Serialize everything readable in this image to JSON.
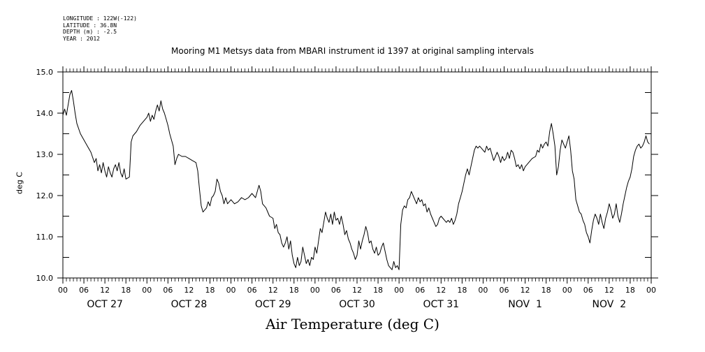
{
  "meta": {
    "longitude": "LONGITUDE : 122W(-122)",
    "latitude": "LATITUDE : 36.8N",
    "depth": "DEPTH (m) : -2.5",
    "year": "YEAR : 2012"
  },
  "chart_data": {
    "type": "line",
    "title": "Mooring M1 Metsys data from MBARI instrument id 1397 at original sampling intervals",
    "xlabel": "Air Temperature (deg C)",
    "ylabel": "deg C",
    "ylim": [
      10.0,
      15.0
    ],
    "xlim_hours": [
      0,
      168
    ],
    "yticks": [
      "10.0",
      "11.0",
      "12.0",
      "13.0",
      "14.0",
      "15.0"
    ],
    "hour_ticks": [
      "00",
      "06",
      "12",
      "18",
      "00",
      "06",
      "12",
      "18",
      "00",
      "06",
      "12",
      "18",
      "00",
      "06",
      "12",
      "18",
      "00",
      "06",
      "12",
      "18",
      "00",
      "06",
      "12",
      "18",
      "00",
      "06",
      "12",
      "18",
      "00"
    ],
    "day_labels": [
      "OCT 27",
      "OCT 28",
      "OCT 29",
      "OCT 30",
      "OCT 31",
      "NOV  1",
      "NOV  2"
    ],
    "grid": false,
    "series": [
      {
        "values": [
          [
            0,
            13.95
          ],
          [
            0.5,
            14.1
          ],
          [
            1,
            13.95
          ],
          [
            1.5,
            14.2
          ],
          [
            2,
            14.45
          ],
          [
            2.5,
            14.55
          ],
          [
            3,
            14.3
          ],
          [
            3.5,
            14.0
          ],
          [
            4,
            13.75
          ],
          [
            5,
            13.5
          ],
          [
            6,
            13.35
          ],
          [
            7,
            13.2
          ],
          [
            8,
            13.05
          ],
          [
            9,
            12.8
          ],
          [
            9.5,
            12.9
          ],
          [
            10,
            12.6
          ],
          [
            10.5,
            12.75
          ],
          [
            11,
            12.55
          ],
          [
            11.5,
            12.8
          ],
          [
            12,
            12.6
          ],
          [
            12.5,
            12.45
          ],
          [
            13,
            12.7
          ],
          [
            13.5,
            12.55
          ],
          [
            14,
            12.45
          ],
          [
            14.5,
            12.65
          ],
          [
            15,
            12.75
          ],
          [
            15.5,
            12.6
          ],
          [
            16,
            12.8
          ],
          [
            16.5,
            12.55
          ],
          [
            17,
            12.45
          ],
          [
            17.5,
            12.65
          ],
          [
            18,
            12.4
          ],
          [
            19,
            12.45
          ],
          [
            19.5,
            13.3
          ],
          [
            20,
            13.45
          ],
          [
            21,
            13.55
          ],
          [
            22,
            13.7
          ],
          [
            23,
            13.8
          ],
          [
            24,
            13.9
          ],
          [
            24.5,
            14.0
          ],
          [
            25,
            13.8
          ],
          [
            25.5,
            13.95
          ],
          [
            26,
            13.85
          ],
          [
            26.5,
            14.05
          ],
          [
            27,
            14.2
          ],
          [
            27.5,
            14.05
          ],
          [
            28,
            14.3
          ],
          [
            28.5,
            14.1
          ],
          [
            29,
            14.0
          ],
          [
            29.5,
            13.85
          ],
          [
            30,
            13.7
          ],
          [
            30.5,
            13.5
          ],
          [
            31,
            13.35
          ],
          [
            31.5,
            13.2
          ],
          [
            32,
            12.75
          ],
          [
            32.5,
            12.9
          ],
          [
            33,
            13.0
          ],
          [
            34,
            12.95
          ],
          [
            35,
            12.95
          ],
          [
            36,
            12.9
          ],
          [
            37,
            12.85
          ],
          [
            38,
            12.8
          ],
          [
            38.5,
            12.6
          ],
          [
            39,
            12.15
          ],
          [
            39.5,
            11.75
          ],
          [
            40,
            11.6
          ],
          [
            41,
            11.7
          ],
          [
            41.5,
            11.85
          ],
          [
            42,
            11.75
          ],
          [
            42.5,
            11.95
          ],
          [
            43,
            12.0
          ],
          [
            43.5,
            12.1
          ],
          [
            44,
            12.4
          ],
          [
            44.5,
            12.3
          ],
          [
            45,
            12.1
          ],
          [
            45.5,
            12.0
          ],
          [
            46,
            11.8
          ],
          [
            46.5,
            11.95
          ],
          [
            47,
            11.8
          ],
          [
            48,
            11.9
          ],
          [
            49,
            11.8
          ],
          [
            50,
            11.85
          ],
          [
            51,
            11.95
          ],
          [
            52,
            11.9
          ],
          [
            53,
            11.95
          ],
          [
            54,
            12.05
          ],
          [
            55,
            11.95
          ],
          [
            56,
            12.25
          ],
          [
            56.5,
            12.1
          ],
          [
            57,
            11.8
          ],
          [
            58,
            11.7
          ],
          [
            59,
            11.5
          ],
          [
            60,
            11.45
          ],
          [
            60.5,
            11.2
          ],
          [
            61,
            11.3
          ],
          [
            61.5,
            11.1
          ],
          [
            62,
            11.05
          ],
          [
            62.5,
            10.85
          ],
          [
            63,
            10.75
          ],
          [
            63.5,
            10.85
          ],
          [
            64,
            11.0
          ],
          [
            64.5,
            10.7
          ],
          [
            65,
            10.9
          ],
          [
            65.5,
            10.55
          ],
          [
            66,
            10.35
          ],
          [
            66.5,
            10.25
          ],
          [
            67,
            10.5
          ],
          [
            67.5,
            10.3
          ],
          [
            68,
            10.4
          ],
          [
            68.5,
            10.75
          ],
          [
            69,
            10.55
          ],
          [
            69.5,
            10.35
          ],
          [
            70,
            10.45
          ],
          [
            70.5,
            10.3
          ],
          [
            71,
            10.5
          ],
          [
            71.5,
            10.45
          ],
          [
            72,
            10.75
          ],
          [
            72.5,
            10.6
          ],
          [
            73,
            10.9
          ],
          [
            73.5,
            11.2
          ],
          [
            74,
            11.1
          ],
          [
            74.5,
            11.35
          ],
          [
            75,
            11.6
          ],
          [
            75.5,
            11.45
          ],
          [
            76,
            11.35
          ],
          [
            76.5,
            11.55
          ],
          [
            77,
            11.3
          ],
          [
            77.5,
            11.6
          ],
          [
            78,
            11.4
          ],
          [
            78.5,
            11.45
          ],
          [
            79,
            11.3
          ],
          [
            79.5,
            11.5
          ],
          [
            80,
            11.3
          ],
          [
            80.5,
            11.05
          ],
          [
            81,
            11.15
          ],
          [
            81.5,
            10.95
          ],
          [
            82,
            10.85
          ],
          [
            82.5,
            10.7
          ],
          [
            83,
            10.6
          ],
          [
            83.5,
            10.45
          ],
          [
            84,
            10.55
          ],
          [
            84.5,
            10.9
          ],
          [
            85,
            10.7
          ],
          [
            85.5,
            10.9
          ],
          [
            86,
            11.05
          ],
          [
            86.5,
            11.25
          ],
          [
            87,
            11.1
          ],
          [
            87.5,
            10.85
          ],
          [
            88,
            10.9
          ],
          [
            88.5,
            10.7
          ],
          [
            89,
            10.6
          ],
          [
            89.5,
            10.75
          ],
          [
            90,
            10.55
          ],
          [
            90.5,
            10.6
          ],
          [
            91,
            10.75
          ],
          [
            91.5,
            10.85
          ],
          [
            92,
            10.65
          ],
          [
            92.5,
            10.45
          ],
          [
            93,
            10.3
          ],
          [
            93.5,
            10.25
          ],
          [
            94,
            10.2
          ],
          [
            94.5,
            10.4
          ],
          [
            95,
            10.25
          ],
          [
            95.5,
            10.3
          ],
          [
            96,
            10.2
          ],
          [
            96.5,
            11.3
          ],
          [
            97,
            11.65
          ],
          [
            97.5,
            11.75
          ],
          [
            98,
            11.7
          ],
          [
            98.5,
            11.9
          ],
          [
            99,
            11.95
          ],
          [
            99.5,
            12.1
          ],
          [
            100,
            12.0
          ],
          [
            100.5,
            11.9
          ],
          [
            101,
            11.8
          ],
          [
            101.5,
            11.95
          ],
          [
            102,
            11.85
          ],
          [
            102.5,
            11.9
          ],
          [
            103,
            11.75
          ],
          [
            103.5,
            11.8
          ],
          [
            104,
            11.6
          ],
          [
            104.5,
            11.7
          ],
          [
            105,
            11.55
          ],
          [
            105.5,
            11.45
          ],
          [
            106,
            11.35
          ],
          [
            106.5,
            11.25
          ],
          [
            107,
            11.3
          ],
          [
            107.5,
            11.45
          ],
          [
            108,
            11.5
          ],
          [
            108.5,
            11.45
          ],
          [
            109,
            11.4
          ],
          [
            109.5,
            11.35
          ],
          [
            110,
            11.4
          ],
          [
            110.5,
            11.35
          ],
          [
            111,
            11.45
          ],
          [
            111.5,
            11.3
          ],
          [
            112,
            11.4
          ],
          [
            112.5,
            11.55
          ],
          [
            113,
            11.8
          ],
          [
            113.5,
            11.95
          ],
          [
            114,
            12.1
          ],
          [
            114.5,
            12.3
          ],
          [
            115,
            12.5
          ],
          [
            115.5,
            12.65
          ],
          [
            116,
            12.5
          ],
          [
            116.5,
            12.7
          ],
          [
            117,
            12.9
          ],
          [
            117.5,
            13.1
          ],
          [
            118,
            13.2
          ],
          [
            118.5,
            13.15
          ],
          [
            119,
            13.2
          ],
          [
            119.5,
            13.15
          ],
          [
            120,
            13.1
          ],
          [
            120.5,
            13.05
          ],
          [
            121,
            13.2
          ],
          [
            121.5,
            13.1
          ],
          [
            122,
            13.15
          ],
          [
            122.5,
            13.0
          ],
          [
            123,
            12.85
          ],
          [
            123.5,
            12.95
          ],
          [
            124,
            13.05
          ],
          [
            124.5,
            12.95
          ],
          [
            125,
            12.8
          ],
          [
            125.5,
            12.95
          ],
          [
            126,
            12.85
          ],
          [
            126.5,
            12.9
          ],
          [
            127,
            13.05
          ],
          [
            127.5,
            12.9
          ],
          [
            128,
            13.1
          ],
          [
            128.5,
            13.05
          ],
          [
            129,
            12.9
          ],
          [
            129.5,
            12.7
          ],
          [
            130,
            12.75
          ],
          [
            130.5,
            12.65
          ],
          [
            131,
            12.75
          ],
          [
            131.5,
            12.6
          ],
          [
            132,
            12.7
          ],
          [
            132.5,
            12.75
          ],
          [
            133,
            12.8
          ],
          [
            134,
            12.9
          ],
          [
            135,
            12.95
          ],
          [
            135.5,
            13.1
          ],
          [
            136,
            13.05
          ],
          [
            136.5,
            13.25
          ],
          [
            137,
            13.15
          ],
          [
            137.5,
            13.25
          ],
          [
            138,
            13.3
          ],
          [
            138.5,
            13.2
          ],
          [
            139,
            13.55
          ],
          [
            139.5,
            13.75
          ],
          [
            140,
            13.5
          ],
          [
            140.5,
            13.2
          ],
          [
            141,
            12.5
          ],
          [
            141.5,
            12.7
          ],
          [
            142,
            13.1
          ],
          [
            142.5,
            13.35
          ],
          [
            143,
            13.25
          ],
          [
            143.5,
            13.15
          ],
          [
            144,
            13.3
          ],
          [
            144.5,
            13.45
          ],
          [
            145,
            13.1
          ],
          [
            145.5,
            12.6
          ],
          [
            146,
            12.4
          ],
          [
            146.5,
            11.9
          ],
          [
            147,
            11.75
          ],
          [
            147.5,
            11.6
          ],
          [
            148,
            11.55
          ],
          [
            148.5,
            11.4
          ],
          [
            149,
            11.3
          ],
          [
            149.5,
            11.1
          ],
          [
            150,
            11.0
          ],
          [
            150.5,
            10.85
          ],
          [
            151,
            11.15
          ],
          [
            151.5,
            11.4
          ],
          [
            152,
            11.55
          ],
          [
            152.5,
            11.45
          ],
          [
            153,
            11.3
          ],
          [
            153.5,
            11.55
          ],
          [
            154,
            11.35
          ],
          [
            154.5,
            11.2
          ],
          [
            155,
            11.45
          ],
          [
            155.5,
            11.6
          ],
          [
            156,
            11.8
          ],
          [
            156.5,
            11.65
          ],
          [
            157,
            11.45
          ],
          [
            157.5,
            11.55
          ],
          [
            158,
            11.8
          ],
          [
            158.5,
            11.5
          ],
          [
            159,
            11.35
          ],
          [
            159.5,
            11.55
          ],
          [
            160,
            11.8
          ],
          [
            160.5,
            12.0
          ],
          [
            161,
            12.2
          ],
          [
            161.5,
            12.35
          ],
          [
            162,
            12.45
          ],
          [
            162.5,
            12.65
          ],
          [
            163,
            12.95
          ],
          [
            163.5,
            13.1
          ],
          [
            164,
            13.2
          ],
          [
            164.5,
            13.25
          ],
          [
            165,
            13.15
          ],
          [
            165.5,
            13.2
          ],
          [
            166,
            13.3
          ],
          [
            166.5,
            13.45
          ],
          [
            167,
            13.3
          ],
          [
            167.5,
            13.25
          ]
        ]
      }
    ]
  }
}
